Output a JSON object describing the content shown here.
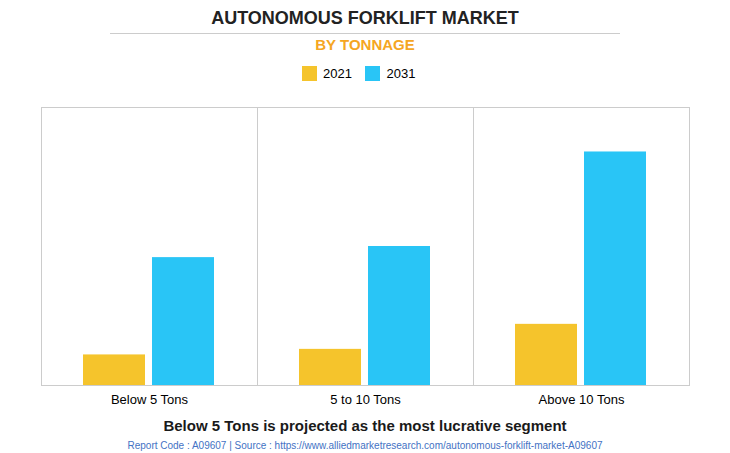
{
  "chart_data": {
    "type": "bar",
    "title": "AUTONOMOUS FORKLIFT MARKET",
    "subtitle": "BY TONNAGE",
    "categories": [
      "Below 5 Tons",
      "5 to 10 Tons",
      "Above 10 Tons"
    ],
    "series": [
      {
        "name": "2021",
        "color": "#F5C42C",
        "values": [
          0.55,
          0.65,
          1.1
        ]
      },
      {
        "name": "2031",
        "color": "#29C5F6",
        "values": [
          2.3,
          2.5,
          4.2
        ]
      }
    ],
    "ylim": [
      0,
      5
    ],
    "yticks": [],
    "grid": false,
    "legend": "top",
    "tick_labels": "x",
    "footer": "Below 5 Tons is projected as the most lucrative segment",
    "source": "Report Code : A09607  |  Source : https://www.alliedmarketresearch.com/autonomous-forklift-market-A09607"
  }
}
